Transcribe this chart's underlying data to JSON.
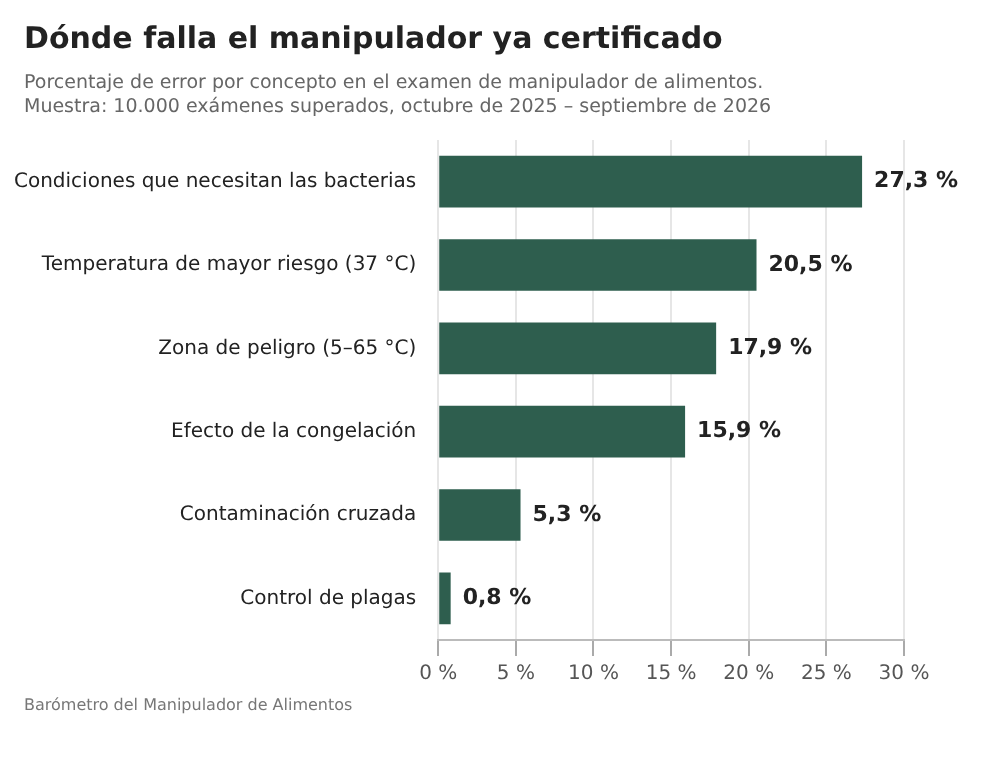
{
  "chart_data": {
    "type": "bar",
    "orientation": "horizontal",
    "title": "Dónde falla el manipulador ya certificado",
    "subtitle": "Porcentaje de error por concepto en el examen de manipulador de alimentos.\nMuestra: 10.000 exámenes superados, octubre de 2025 – septiembre de 2026",
    "categories": [
      "Condiciones que necesitan las bacterias",
      "Temperatura de mayor riesgo (37 °C)",
      "Zona de peligro (5–65 °C)",
      "Efecto de la congelación",
      "Contaminación cruzada",
      "Control de plagas"
    ],
    "values": [
      27.3,
      20.5,
      17.9,
      15.9,
      5.3,
      0.8
    ],
    "value_labels": [
      "27,3 %",
      "20,5 %",
      "17,9 %",
      "15,9 %",
      "5,3 %",
      "0,8 %"
    ],
    "color": "#2e5e4e",
    "xlim": [
      0,
      30
    ],
    "xticks": [
      {
        "value": 0,
        "label": "0 %"
      },
      {
        "value": 5,
        "label": "5 %"
      },
      {
        "value": 10,
        "label": "10 %"
      },
      {
        "value": 15,
        "label": "15 %"
      },
      {
        "value": 20,
        "label": "20 %"
      },
      {
        "value": 25,
        "label": "25 %"
      },
      {
        "value": 30,
        "label": "30 %"
      }
    ],
    "grid": "x",
    "legend": false,
    "annotations": [
      "Barómetro del Manipulador de Alimentos"
    ]
  }
}
